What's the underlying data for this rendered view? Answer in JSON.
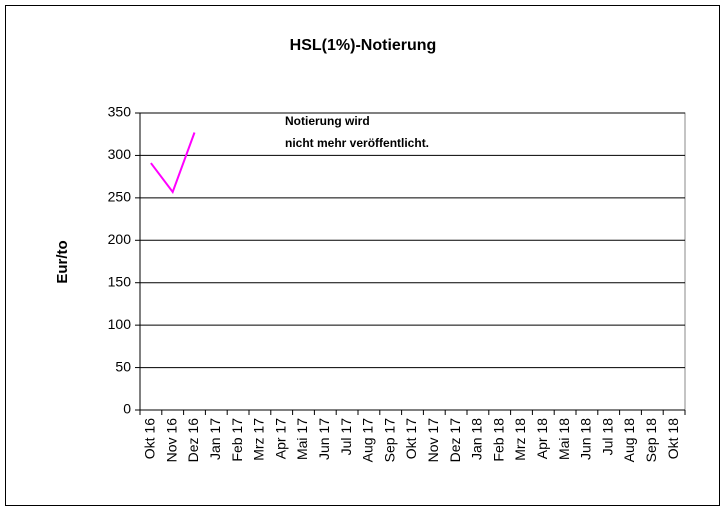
{
  "chart_data": {
    "type": "line",
    "title": "HSL(1%)-Notierung",
    "y_label": "Eur/to",
    "annotation": [
      "Notierung wird",
      "nicht mehr veröffentlicht."
    ],
    "categories": [
      "Okt 16",
      "Nov 16",
      "Dez 16",
      "Jan 17",
      "Feb 17",
      "Mrz 17",
      "Apr 17",
      "Mai 17",
      "Jun 17",
      "Jul 17",
      "Aug 17",
      "Sep 17",
      "Okt 17",
      "Nov 17",
      "Dez 17",
      "Jan 18",
      "Feb 18",
      "Mrz 18",
      "Apr 18",
      "Mai 18",
      "Jun 18",
      "Jul 18",
      "Aug 18",
      "Sep 18",
      "Okt 18"
    ],
    "values": [
      291,
      257,
      327,
      null,
      null,
      null,
      null,
      null,
      null,
      null,
      null,
      null,
      null,
      null,
      null,
      null,
      null,
      null,
      null,
      null,
      null,
      null,
      null,
      null,
      null
    ],
    "color": "#ff00ff",
    "ylim": [
      0,
      350
    ],
    "yticks": [
      0,
      50,
      100,
      150,
      200,
      250,
      300,
      350
    ],
    "grid": true
  }
}
